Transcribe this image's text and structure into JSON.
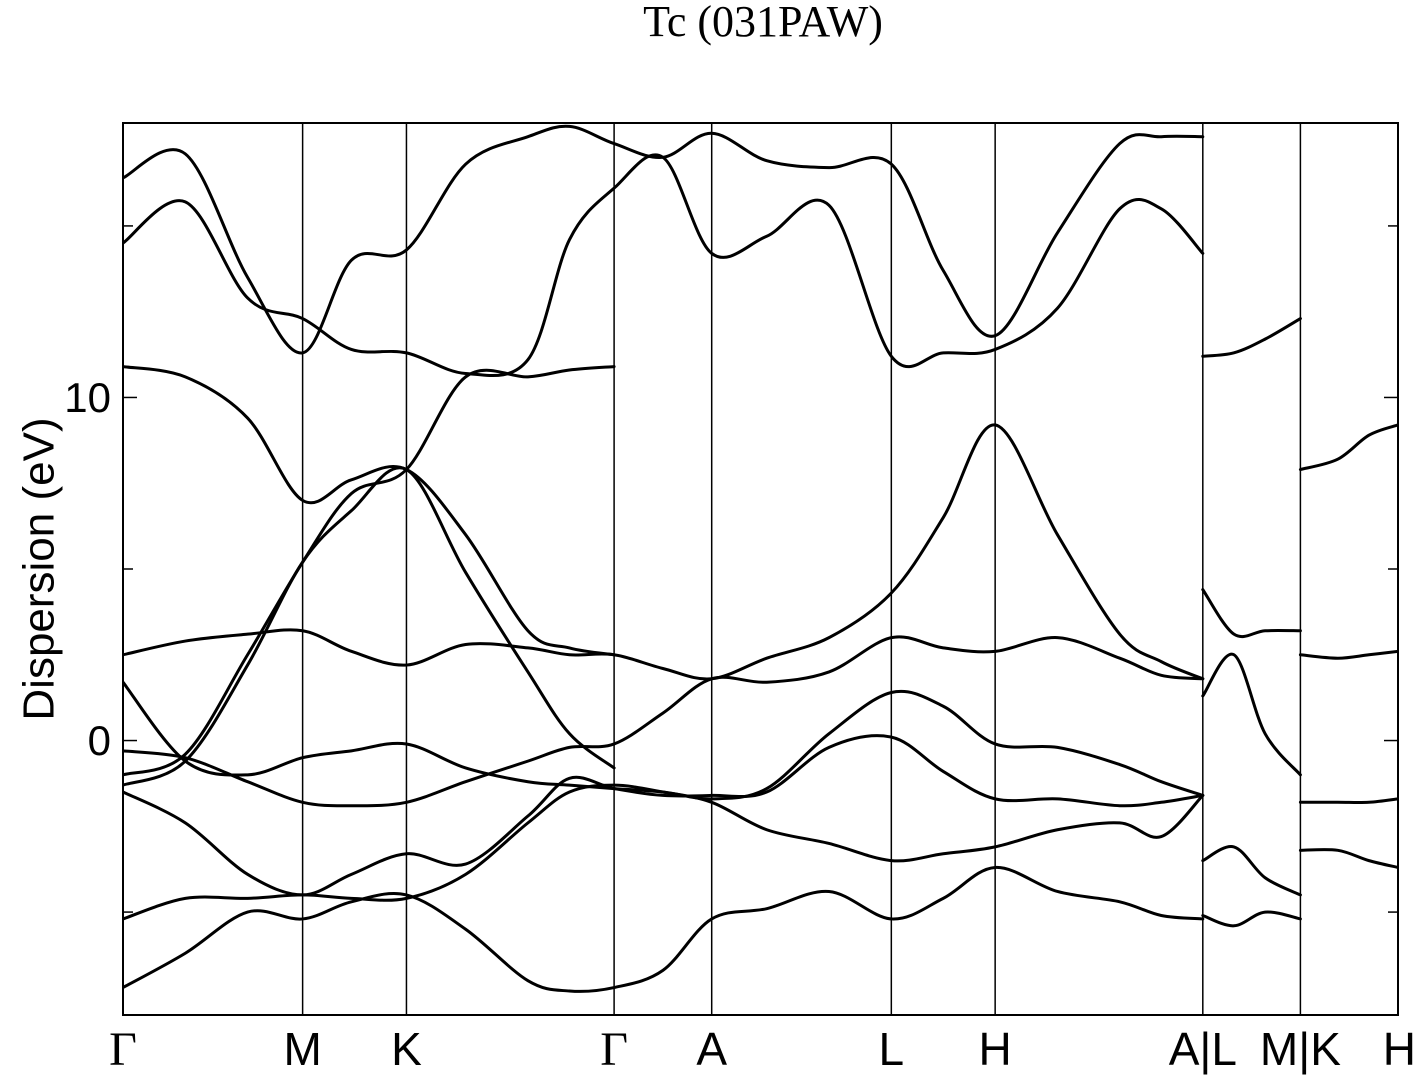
{
  "chart_data": {
    "type": "line",
    "title": "Tc (031PAW)",
    "ylabel": "Dispersion (eV)",
    "xlabel": "",
    "ylim": [
      -8,
      18
    ],
    "yticks": [
      {
        "value": 0,
        "label": "0"
      },
      {
        "value": 10,
        "label": "10"
      }
    ],
    "minor_yticks": [
      -5,
      5,
      15
    ],
    "kpoints": [
      {
        "label": "Γ",
        "x": 0
      },
      {
        "label": "M",
        "x": 1.73
      },
      {
        "label": "K",
        "x": 2.73
      },
      {
        "label": "Γ",
        "x": 4.73
      },
      {
        "label": "A",
        "x": 5.67
      },
      {
        "label": "L",
        "x": 7.4
      },
      {
        "label": "H",
        "x": 8.4
      },
      {
        "label": "A|L",
        "x": 10.4
      },
      {
        "label": "M|K",
        "x": 11.34
      },
      {
        "label": "H",
        "x": 12.28
      }
    ],
    "xlim": [
      0,
      12.28
    ],
    "series": [
      {
        "x": [
          0,
          0.6,
          1.2,
          1.73,
          2.2,
          2.73,
          3.3,
          3.9,
          4.3,
          4.73,
          5.2,
          5.67,
          6.2,
          6.8,
          7.4,
          7.9,
          8.4,
          9.0,
          9.6,
          10.0,
          10.4
        ],
        "values": [
          -7.2,
          -6.2,
          -5.0,
          -5.2,
          -4.7,
          -4.5,
          -5.5,
          -7.0,
          -7.3,
          -7.2,
          -6.7,
          -5.2,
          -4.9,
          -4.4,
          -5.2,
          -4.6,
          -3.7,
          -4.4,
          -4.7,
          -5.1,
          -5.2
        ]
      },
      {
        "x": [
          0,
          0.6,
          1.2,
          1.73,
          2.2,
          2.73,
          3.3,
          3.9,
          4.3,
          4.73,
          5.2,
          5.67,
          6.2,
          6.8,
          7.4,
          7.9,
          8.4,
          9.0,
          9.6,
          10.0,
          10.4
        ],
        "values": [
          -5.2,
          -4.6,
          -4.6,
          -4.5,
          -4.6,
          -4.6,
          -3.9,
          -2.4,
          -1.5,
          -1.3,
          -1.5,
          -1.8,
          -2.6,
          -3.0,
          -3.5,
          -3.3,
          -3.1,
          -2.6,
          -2.4,
          -2.8,
          -1.6
        ]
      },
      {
        "x": [
          0,
          0.6,
          1.2,
          1.73,
          2.2,
          2.73,
          3.3,
          3.9,
          4.3,
          4.73,
          5.2,
          5.67,
          6.2,
          6.8,
          7.4,
          7.9,
          8.4,
          9.0,
          9.6,
          10.0,
          10.4
        ],
        "values": [
          -1.5,
          -2.4,
          -3.9,
          -4.5,
          -3.9,
          -3.3,
          -3.6,
          -2.2,
          -1.1,
          -1.4,
          -1.6,
          -1.6,
          -1.5,
          -0.2,
          0.1,
          -0.9,
          -1.7,
          -1.7,
          -1.9,
          -1.8,
          -1.6
        ]
      },
      {
        "x": [
          0,
          0.6,
          1.2,
          1.73,
          2.2,
          2.73,
          3.3,
          3.9,
          4.3,
          4.73,
          5.2,
          5.67,
          6.2,
          6.8,
          7.4,
          7.9,
          8.4,
          9.0,
          9.6,
          10.0,
          10.4
        ],
        "values": [
          -0.3,
          -0.5,
          -1.2,
          -1.8,
          -1.9,
          -1.8,
          -1.2,
          -0.6,
          -0.2,
          -0.1,
          0.8,
          1.8,
          1.7,
          2.0,
          3.0,
          2.7,
          2.6,
          3.0,
          2.4,
          1.9,
          1.8
        ]
      },
      {
        "x": [
          0,
          0.6,
          1.2,
          1.73,
          2.2,
          2.73,
          3.3,
          3.9,
          4.3,
          4.73,
          5.2,
          5.67,
          6.2,
          6.8,
          7.4,
          7.9,
          8.4,
          9.0,
          9.6,
          10.0,
          10.4
        ],
        "values": [
          1.7,
          -0.6,
          -1.0,
          -0.5,
          -0.3,
          -0.1,
          -0.8,
          -1.2,
          -1.3,
          -1.4,
          -1.5,
          -1.7,
          -1.4,
          0.2,
          1.4,
          1.0,
          -0.1,
          -0.2,
          -0.7,
          -1.2,
          -1.6
        ]
      },
      {
        "x": [
          0,
          0.6,
          1.2,
          1.73,
          2.2,
          2.73,
          3.3,
          3.9,
          4.3,
          4.73,
          5.2,
          5.67,
          6.2,
          6.8,
          7.4,
          7.9,
          8.4,
          9.0,
          9.6,
          10.0,
          10.4
        ],
        "values": [
          2.5,
          2.9,
          3.1,
          3.2,
          2.6,
          2.2,
          2.8,
          2.7,
          2.5,
          2.5,
          2.1,
          1.8,
          2.4,
          3.0,
          4.3,
          6.5,
          9.2,
          6.0,
          3.1,
          2.3,
          1.8
        ]
      },
      {
        "x": [
          0,
          0.6,
          1.2,
          1.73,
          2.2,
          2.73,
          3.3,
          3.9,
          4.3,
          4.73
        ],
        "values": [
          -1.3,
          -0.6,
          2.2,
          5.2,
          6.7,
          7.9,
          4.9,
          2.0,
          0.2,
          -0.8
        ]
      },
      {
        "x": [
          0,
          0.6,
          1.2,
          1.73,
          2.2,
          2.73,
          3.3,
          3.9,
          4.3,
          4.73
        ],
        "values": [
          -1.0,
          -0.4,
          2.5,
          5.2,
          7.2,
          7.9,
          10.6,
          10.6,
          10.8,
          10.9
        ]
      },
      {
        "x": [
          0,
          0.6,
          1.2,
          1.73,
          2.2,
          2.73,
          3.3,
          3.9,
          4.3,
          4.73
        ],
        "values": [
          10.9,
          10.6,
          9.4,
          7.0,
          7.6,
          7.9,
          6.0,
          3.2,
          2.7,
          2.5
        ]
      },
      {
        "x": [
          0,
          0.6,
          1.2,
          1.73,
          2.2,
          2.73,
          3.3,
          3.9,
          4.3,
          4.73,
          5.2,
          5.67,
          6.2,
          6.8,
          7.4,
          7.9,
          8.4,
          9.0,
          9.6,
          10.0,
          10.4
        ],
        "values": [
          14.5,
          15.7,
          12.9,
          12.3,
          11.4,
          11.3,
          10.7,
          11.1,
          14.6,
          16.1,
          17.0,
          14.2,
          14.7,
          15.6,
          11.2,
          11.3,
          11.4,
          12.6,
          15.5,
          15.5,
          14.2
        ]
      },
      {
        "x": [
          0,
          0.6,
          1.2,
          1.73,
          2.2,
          2.73,
          3.3,
          3.9,
          4.3,
          4.73,
          5.2,
          5.67,
          6.2,
          6.8,
          7.4,
          7.9,
          8.4,
          9.0,
          9.6,
          10.0,
          10.4
        ],
        "values": [
          16.4,
          17.1,
          13.5,
          11.3,
          14.0,
          14.3,
          16.8,
          17.6,
          17.9,
          17.4,
          17.0,
          17.7,
          16.9,
          16.7,
          16.8,
          13.7,
          11.8,
          14.8,
          17.4,
          17.6,
          17.6
        ]
      },
      {
        "x": [
          10.4,
          10.7,
          11.0,
          11.34
        ],
        "values": [
          11.2,
          11.3,
          11.7,
          12.3
        ]
      },
      {
        "x": [
          10.4,
          10.7,
          11.0,
          11.34
        ],
        "values": [
          4.4,
          3.1,
          3.2,
          3.2
        ]
      },
      {
        "x": [
          10.4,
          10.7,
          11.0,
          11.34
        ],
        "values": [
          -3.5,
          -3.1,
          -4.0,
          -4.5
        ]
      },
      {
        "x": [
          10.4,
          10.7,
          11.0,
          11.34
        ],
        "values": [
          -5.1,
          -5.4,
          -5.0,
          -5.2
        ]
      },
      {
        "x": [
          10.4,
          10.7,
          11.0,
          11.34
        ],
        "values": [
          1.3,
          2.5,
          0.2,
          -1.0
        ]
      },
      {
        "x": [
          11.34,
          11.7,
          12.0,
          12.28
        ],
        "values": [
          7.9,
          8.2,
          8.9,
          9.2
        ]
      },
      {
        "x": [
          11.34,
          11.7,
          12.0,
          12.28
        ],
        "values": [
          -1.8,
          -1.8,
          -1.8,
          -1.7
        ]
      },
      {
        "x": [
          11.34,
          11.7,
          12.0,
          12.28
        ],
        "values": [
          -3.2,
          -3.2,
          -3.5,
          -3.7
        ]
      },
      {
        "x": [
          11.34,
          11.7,
          12.0,
          12.28
        ],
        "values": [
          2.5,
          2.4,
          2.5,
          2.6
        ]
      }
    ]
  }
}
